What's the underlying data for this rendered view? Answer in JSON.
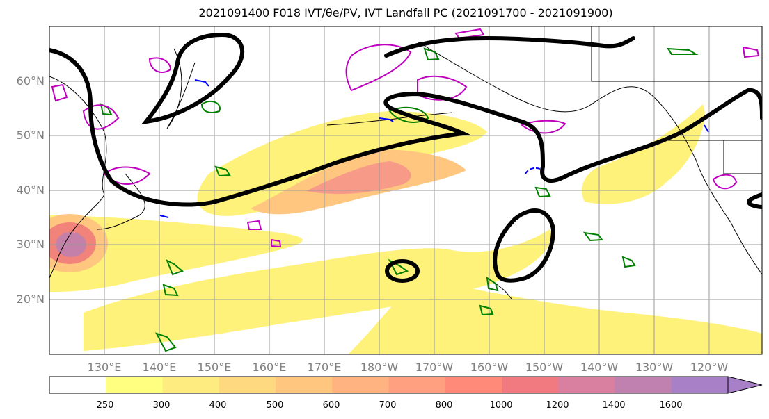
{
  "title": "2021091400 F018 IVT/θe/PV, IVT Landfall PC (2021091700 - 2021091900)",
  "lat_labels": [
    "60°N",
    "50°N",
    "40°N",
    "30°N",
    "20°N"
  ],
  "lon_labels": [
    "130°E",
    "140°E",
    "150°E",
    "160°E",
    "170°E",
    "180°W",
    "170°W",
    "160°W",
    "150°W",
    "140°W",
    "130°W",
    "120°W"
  ],
  "colorbar": {
    "levels": [
      "250",
      "300",
      "400",
      "500",
      "600",
      "700",
      "800",
      "1000",
      "1200",
      "1400",
      "1600"
    ],
    "colors": [
      "#ffffff",
      "#ffff80",
      "#ffec80",
      "#ffd980",
      "#ffc680",
      "#ffb380",
      "#ffa080",
      "#ff8a7a",
      "#f07a80",
      "#d980a0",
      "#c080b0",
      "#a880c8"
    ]
  },
  "contour_colors": {
    "pc": "#000000",
    "theta_e": "#008000",
    "pv_pos": "#c000c0",
    "pv_neg": "#0000ff"
  }
}
